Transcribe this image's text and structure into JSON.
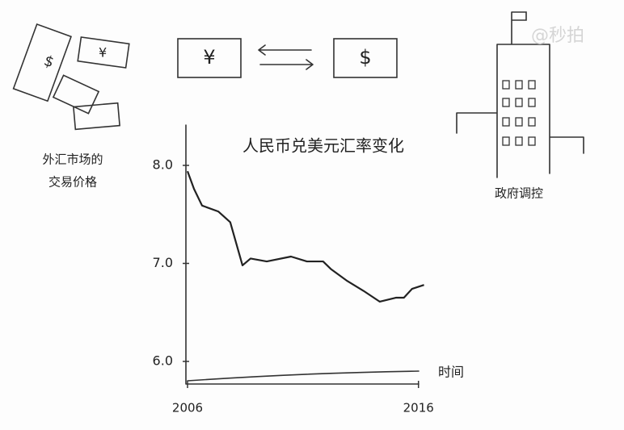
{
  "chart_data": {
    "type": "line",
    "title": "人民币兑美元汇率变化",
    "x_label": "时间",
    "x": [
      2006.0,
      2006.28,
      2006.63,
      2007.33,
      2007.85,
      2008.38,
      2008.73,
      2009.43,
      2010.48,
      2011.17,
      2011.87,
      2012.22,
      2012.92,
      2013.62,
      2014.32,
      2015.02,
      2015.37,
      2015.72,
      2016.24
    ],
    "series": [
      {
        "color": "#222222",
        "values": [
          7.94,
          7.76,
          7.59,
          7.53,
          7.42,
          6.98,
          7.05,
          7.02,
          7.07,
          7.02,
          7.02,
          6.94,
          6.82,
          6.72,
          6.61,
          6.65,
          6.65,
          6.74,
          6.78
        ]
      }
    ],
    "xlim": [
      2006,
      2016.5
    ],
    "xticks": [
      2006,
      2016
    ],
    "ylim": [
      5.8,
      8.4
    ],
    "yticks": [
      {
        "value": 6,
        "label": "6.0"
      },
      {
        "value": 7,
        "label": "7.0"
      },
      {
        "value": 8,
        "label": "8.0"
      }
    ]
  },
  "annotations": {
    "left_caption": [
      "外汇市场的",
      "交易价格"
    ],
    "right_caption": "政府调控",
    "yuan": "¥",
    "dollar": "$",
    "watermark": "@秒拍"
  }
}
